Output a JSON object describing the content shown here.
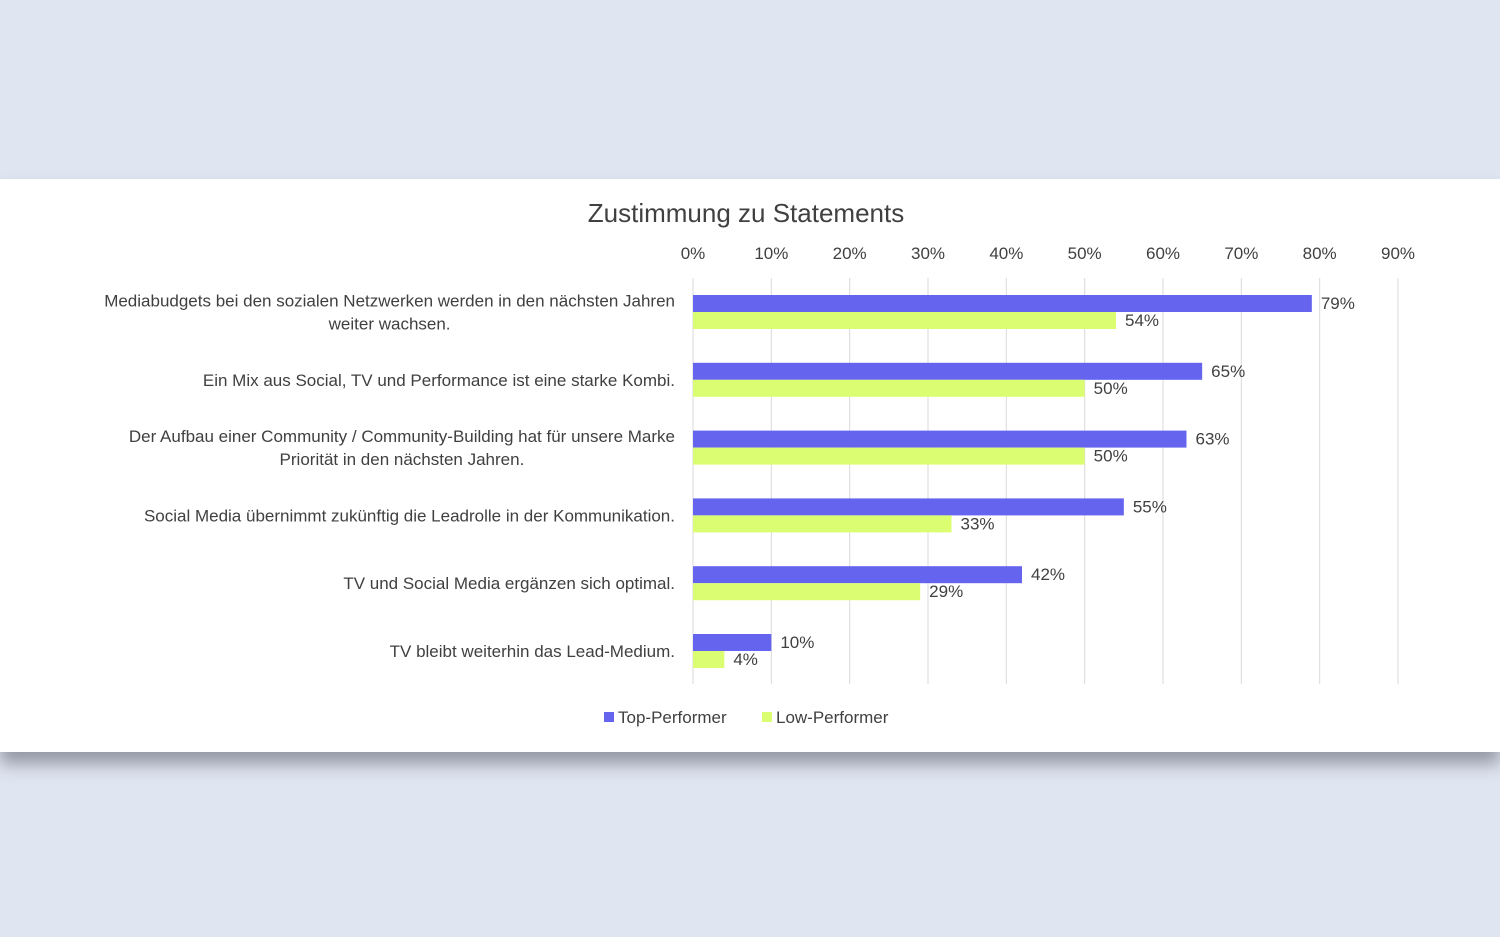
{
  "chart_data": {
    "type": "bar",
    "orientation": "horizontal",
    "title": "Zustimmung zu Statements",
    "categories": [
      [
        "Mediabudgets bei den sozialen Netzwerken werden in den nächsten Jahren",
        "weiter wachsen."
      ],
      [
        "Ein Mix aus Social, TV und Performance ist eine starke Kombi."
      ],
      [
        "Der Aufbau einer Community / Community-Building hat für unsere Marke",
        "Priorität in den nächsten Jahren."
      ],
      [
        "Social Media übernimmt zukünftig die Leadrolle in der Kommunikation."
      ],
      [
        "TV und Social Media ergänzen sich optimal."
      ],
      [
        "TV bleibt weiterhin das Lead-Medium."
      ]
    ],
    "series": [
      {
        "name": "Top-Performer",
        "color": "#6464ef",
        "values": [
          79,
          65,
          63,
          55,
          42,
          10
        ]
      },
      {
        "name": "Low-Performer",
        "color": "#dbfd72",
        "values": [
          54,
          50,
          50,
          33,
          29,
          4
        ]
      }
    ],
    "xlim": [
      0,
      90
    ],
    "xticks": [
      "0%",
      "10%",
      "20%",
      "30%",
      "40%",
      "50%",
      "60%",
      "70%",
      "80%",
      "90%"
    ],
    "axis_position": "top",
    "grid": true,
    "value_suffix": "%",
    "legend_position": "bottom"
  }
}
